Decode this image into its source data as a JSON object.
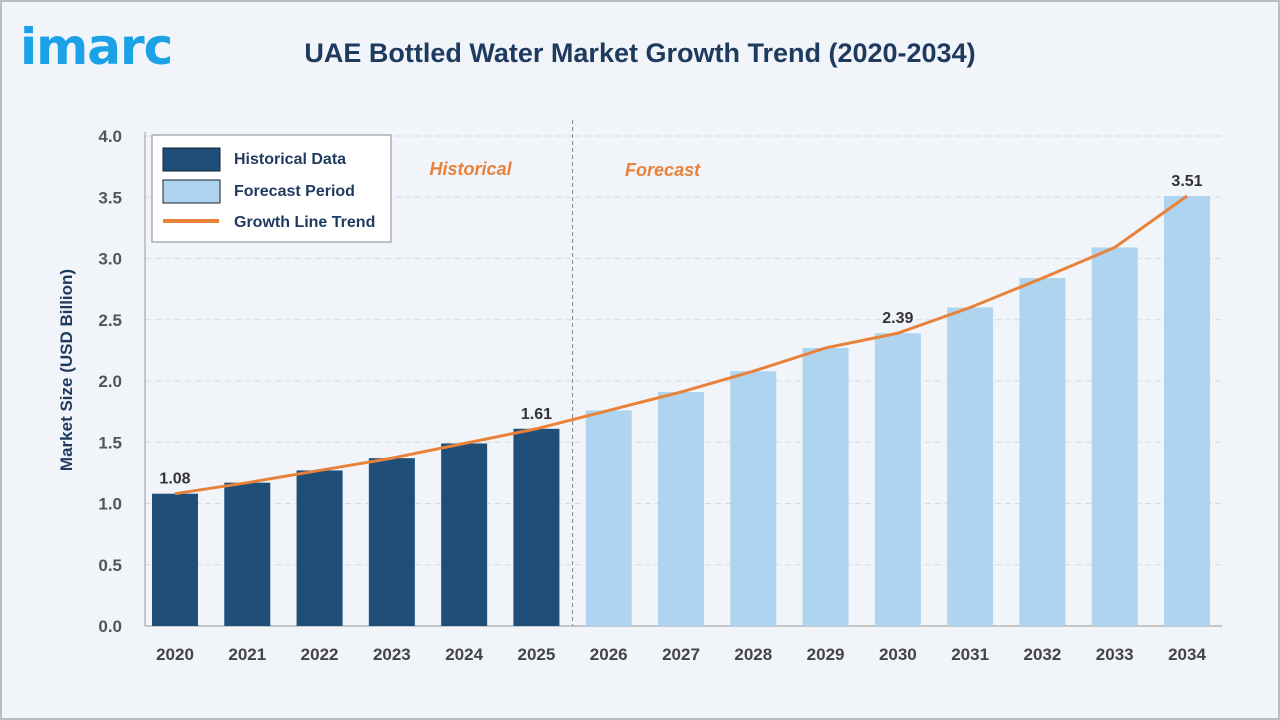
{
  "logo": "imarc",
  "title": "UAE Bottled Water Market Growth Trend (2020-2034)",
  "chart_data": {
    "type": "bar",
    "title": "UAE Bottled Water Market Growth Trend (2020-2034)",
    "xlabel": "",
    "ylabel": "Market Size (USD Billion)",
    "ylim": [
      0,
      4.0
    ],
    "yticks": [
      "0.0",
      "0.5",
      "1.0",
      "1.5",
      "2.0",
      "2.5",
      "3.0",
      "3.5",
      "4.0"
    ],
    "grid": true,
    "legend_position": "top-left",
    "categories": [
      "2020",
      "2021",
      "2022",
      "2023",
      "2024",
      "2025",
      "2026",
      "2027",
      "2028",
      "2029",
      "2030",
      "2031",
      "2032",
      "2033",
      "2034"
    ],
    "values": [
      1.08,
      1.17,
      1.27,
      1.37,
      1.49,
      1.61,
      1.76,
      1.91,
      2.08,
      2.27,
      2.39,
      2.6,
      2.84,
      3.09,
      3.51
    ],
    "historical_count": 6,
    "data_labels": {
      "2020": "1.08",
      "2025": "1.61",
      "2030": "2.39",
      "2034": "3.51"
    },
    "series": [
      {
        "name": "Historical Data",
        "color": "#1f4e79"
      },
      {
        "name": "Forecast Period",
        "color": "#aed4ef"
      },
      {
        "name": "Growth Line Trend",
        "color": "#e8823a"
      }
    ],
    "annotations": [
      "Historical",
      "Forecast"
    ]
  }
}
